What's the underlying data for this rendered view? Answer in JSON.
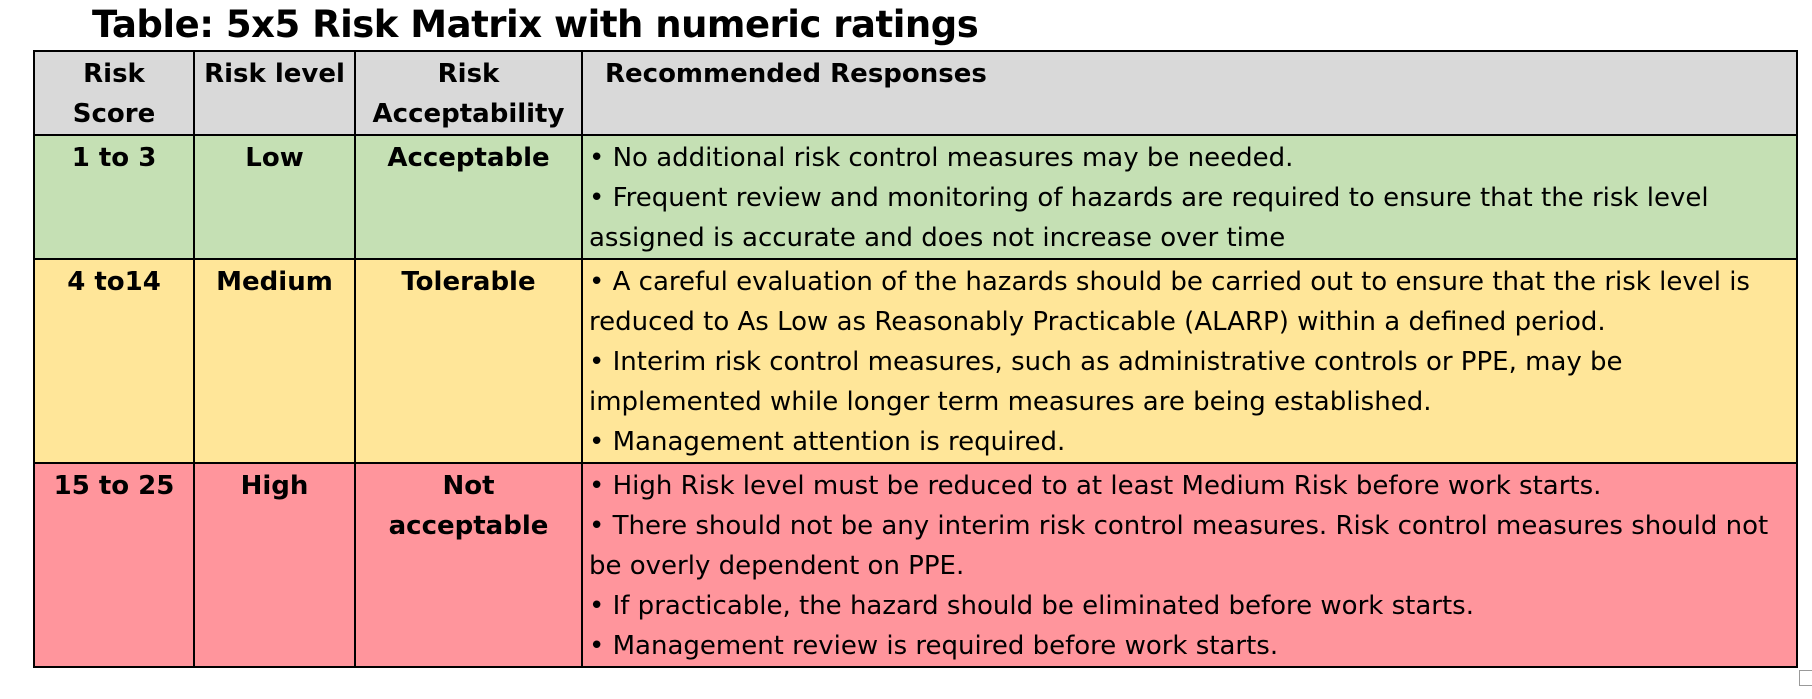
{
  "title": "Table: 5x5 Risk Matrix with numeric ratings",
  "headers": {
    "score": "Risk Score",
    "level": "Risk level",
    "acceptability": "Risk Acceptability",
    "responses": "Recommended Responses"
  },
  "rows": [
    {
      "score": "1 to 3",
      "level": "Low",
      "acceptability": "Acceptable",
      "color": "#c5e0b4",
      "responses": [
        "• No additional risk control measures may be needed.",
        "• Frequent review and monitoring of hazards are required to ensure that the risk level assigned is accurate and does not increase over time"
      ]
    },
    {
      "score": "4 to14",
      "level": "Medium",
      "acceptability": "Tolerable",
      "color": "#ffe699",
      "responses": [
        "• A careful evaluation of the hazards should be carried out to ensure that the risk level is reduced to As Low as Reasonably Practicable (ALARP) within a defined period.",
        "• Interim risk control measures, such as administrative controls or PPE, may be implemented while longer term measures are being established.",
        "• Management attention is required."
      ]
    },
    {
      "score": "15 to 25",
      "level": "High",
      "acceptability": "Not acceptable",
      "color": "#ff959c",
      "responses": [
        "• High Risk level must be reduced to at least Medium Risk before work starts.",
        "• There should not be any interim risk control measures. Risk control measures should not be overly dependent on PPE.",
        "• If practicable, the hazard should be eliminated before work starts.",
        "• Management review is required before work starts."
      ]
    }
  ],
  "header_color": "#d9d9d9"
}
